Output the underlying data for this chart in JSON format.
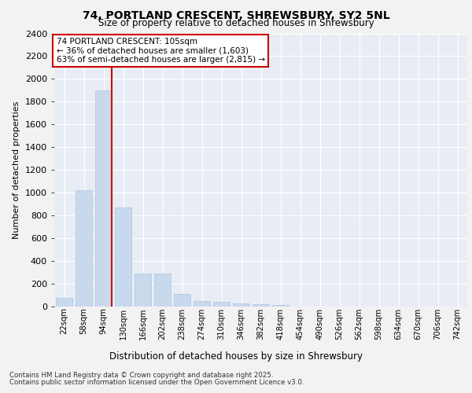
{
  "title1": "74, PORTLAND CRESCENT, SHREWSBURY, SY2 5NL",
  "title2": "Size of property relative to detached houses in Shrewsbury",
  "xlabel": "Distribution of detached houses by size in Shrewsbury",
  "ylabel": "Number of detached properties",
  "bar_color": "#c8d9ee",
  "bar_edge_color": "#aec4de",
  "background_color": "#e8edf5",
  "grid_color": "#ffffff",
  "categories": [
    "22sqm",
    "58sqm",
    "94sqm",
    "130sqm",
    "166sqm",
    "202sqm",
    "238sqm",
    "274sqm",
    "310sqm",
    "346sqm",
    "382sqm",
    "418sqm",
    "454sqm",
    "490sqm",
    "526sqm",
    "562sqm",
    "598sqm",
    "634sqm",
    "670sqm",
    "706sqm",
    "742sqm"
  ],
  "values": [
    75,
    1025,
    1900,
    870,
    290,
    290,
    110,
    50,
    40,
    25,
    20,
    15,
    0,
    0,
    0,
    0,
    0,
    0,
    0,
    0,
    0
  ],
  "ylim": [
    0,
    2400
  ],
  "yticks": [
    0,
    200,
    400,
    600,
    800,
    1000,
    1200,
    1400,
    1600,
    1800,
    2000,
    2200,
    2400
  ],
  "property_label": "74 PORTLAND CRESCENT: 105sqm",
  "annotation_line1": "← 36% of detached houses are smaller (1,603)",
  "annotation_line2": "63% of semi-detached houses are larger (2,815) →",
  "vline_color": "#cc0000",
  "annotation_box_color": "#ffffff",
  "footnote1": "Contains HM Land Registry data © Crown copyright and database right 2025.",
  "footnote2": "Contains public sector information licensed under the Open Government Licence v3.0.",
  "fig_bg": "#f2f2f2"
}
